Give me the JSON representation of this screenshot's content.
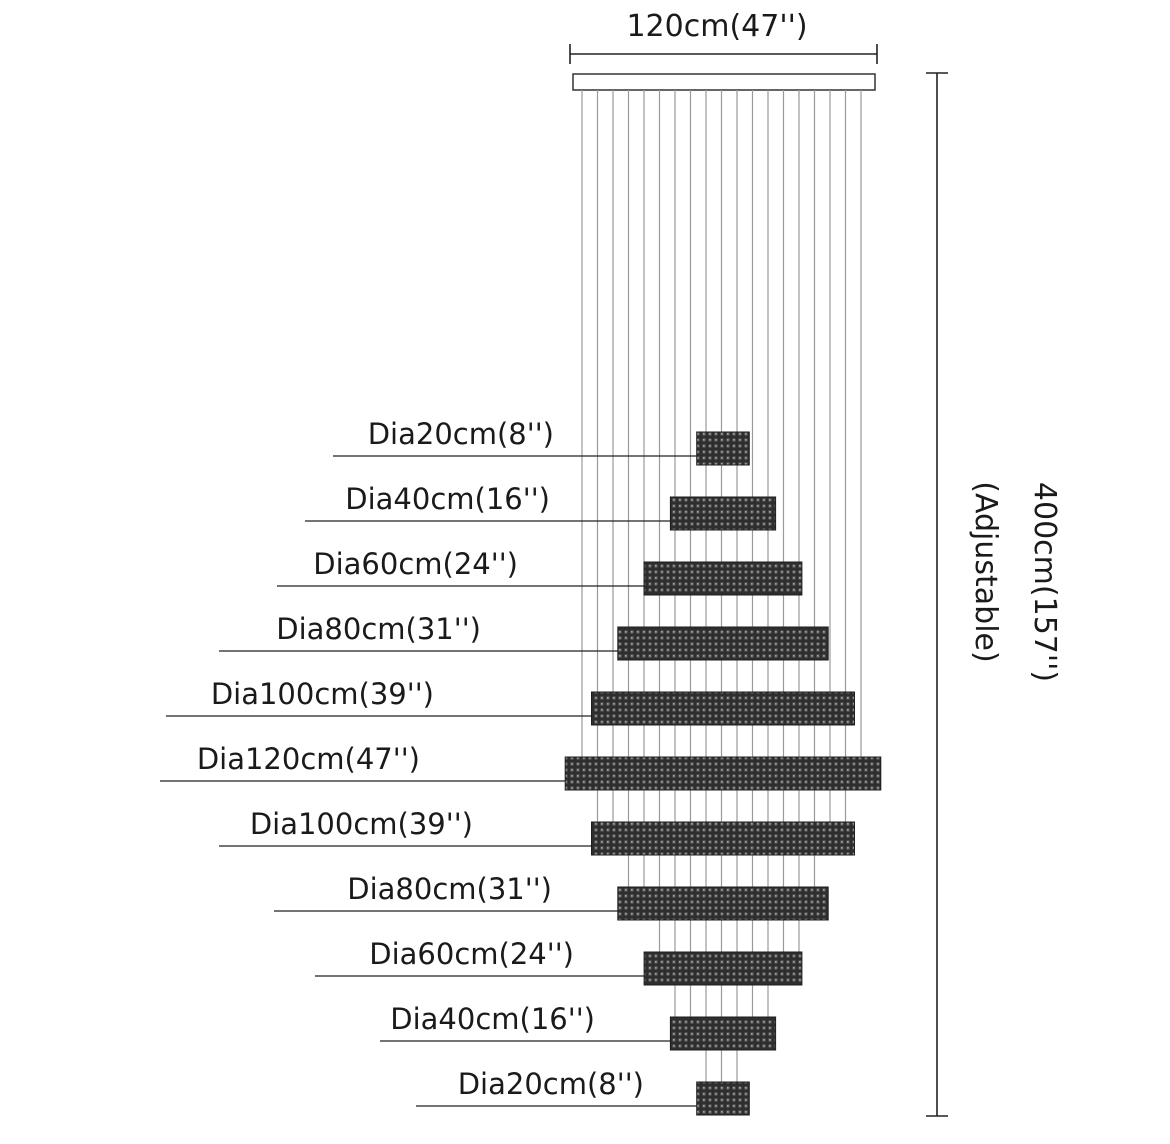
{
  "canopy_width": "120cm(47'')",
  "total_height": "400cm(157'')",
  "height_note": "(Adjustable)",
  "tiers": [
    {
      "label": "Dia20cm(8'')",
      "diameter_cm": 20
    },
    {
      "label": "Dia40cm(16'')",
      "diameter_cm": 40
    },
    {
      "label": "Dia60cm(24'')",
      "diameter_cm": 60
    },
    {
      "label": "Dia80cm(31'')",
      "diameter_cm": 80
    },
    {
      "label": "Dia100cm(39'')",
      "diameter_cm": 100
    },
    {
      "label": "Dia120cm(47'')",
      "diameter_cm": 120
    },
    {
      "label": "Dia100cm(39'')",
      "diameter_cm": 100
    },
    {
      "label": "Dia80cm(31'')",
      "diameter_cm": 80
    },
    {
      "label": "Dia60cm(24'')",
      "diameter_cm": 60
    },
    {
      "label": "Dia40cm(16'')",
      "diameter_cm": 40
    },
    {
      "label": "Dia20cm(8'')",
      "diameter_cm": 20
    }
  ],
  "colors": {
    "crystal": "#2b2b2b",
    "wire": "#9a9a9a",
    "line": "#222222"
  }
}
